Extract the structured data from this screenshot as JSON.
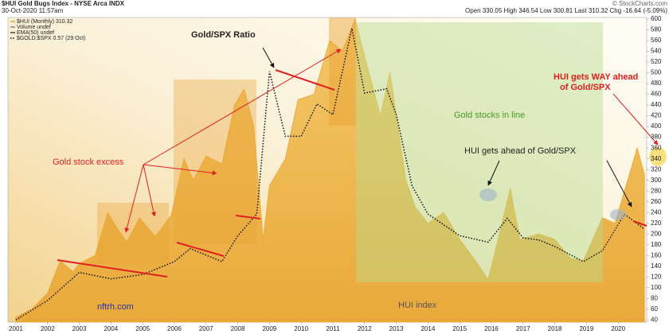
{
  "header": {
    "symbol": "$HUI Gold Bugs Index - NYSE Arca INDX",
    "date": "30-Oct-2020 11:57am",
    "source": "© StockCharts.com",
    "stats": "Open 330.05  High 346.54  Low 300.81  Last 310.32  Chg -16.64 (-5.09%)"
  },
  "chart_data": {
    "type": "area",
    "legend_extra": [
      "Volume undef",
      "EMA(50) undef"
    ],
    "annotations": [
      "Gold/SPX Ratio",
      "Gold stock excess",
      "Gold stocks in line",
      "HUI gets ahead of Gold/SPX",
      "HUI gets WAY ahead",
      "of Gold/SPX",
      "nftrh.com",
      "HUI index"
    ],
    "xlim": [
      2000.75,
      2020.9
    ],
    "xticks": [
      2001,
      2002,
      2003,
      2004,
      2005,
      2006,
      2007,
      2008,
      2009,
      2010,
      2011,
      2012,
      2013,
      2014,
      2015,
      2016,
      2017,
      2018,
      2019,
      2020
    ],
    "ylim": [
      36,
      603
    ],
    "yticks": [
      40,
      60,
      80,
      100,
      120,
      140,
      160,
      180,
      200,
      220,
      240,
      260,
      280,
      300,
      320,
      340,
      360,
      380,
      400,
      420,
      440,
      460,
      480,
      500,
      520,
      540,
      560,
      580,
      600
    ],
    "y2lim": [
      0.14,
      1.55
    ],
    "series": [
      {
        "name": "$HUI (Monthly) 310.32",
        "color": "#eaa52a",
        "x": [
          2001.0,
          2001.5,
          2002.0,
          2002.4,
          2002.8,
          2003.0,
          2003.5,
          2003.9,
          2004.2,
          2004.5,
          2004.9,
          2005.4,
          2005.9,
          2006.3,
          2006.6,
          2007.0,
          2007.5,
          2007.9,
          2008.2,
          2008.5,
          2008.8,
          2009.0,
          2009.5,
          2009.9,
          2010.4,
          2010.9,
          2011.3,
          2011.7,
          2012.0,
          2012.5,
          2012.8,
          2013.3,
          2013.6,
          2014.0,
          2014.5,
          2015.0,
          2015.5,
          2015.9,
          2016.6,
          2016.9,
          2017.5,
          2018.0,
          2018.5,
          2018.9,
          2019.5,
          2019.9,
          2020.6,
          2020.83
        ],
        "values": [
          45,
          60,
          90,
          150,
          130,
          145,
          160,
          240,
          210,
          185,
          230,
          195,
          235,
          340,
          300,
          345,
          330,
          440,
          470,
          400,
          190,
          290,
          340,
          450,
          460,
          560,
          540,
          600,
          530,
          420,
          500,
          300,
          250,
          220,
          240,
          190,
          150,
          115,
          285,
          190,
          200,
          190,
          155,
          150,
          230,
          220,
          360,
          310.32
        ]
      },
      {
        "name": "$GOLD:$SPX 0.57 (29 Oct)",
        "color": "#111111",
        "type": "line",
        "axis": "y2",
        "style": "dotted",
        "x": [
          2001.0,
          2002.0,
          2003.0,
          2004.0,
          2005.0,
          2006.0,
          2006.5,
          2007.5,
          2008.0,
          2008.6,
          2009.0,
          2009.5,
          2010.0,
          2010.5,
          2011.0,
          2011.6,
          2012.0,
          2012.7,
          2013.0,
          2013.5,
          2014.0,
          2014.5,
          2015.0,
          2015.9,
          2016.5,
          2017.0,
          2017.5,
          2018.0,
          2018.9,
          2019.5,
          2020.2,
          2020.83
        ],
        "values": [
          0.15,
          0.24,
          0.37,
          0.34,
          0.36,
          0.42,
          0.48,
          0.42,
          0.54,
          0.64,
          1.3,
          1.0,
          1.0,
          1.15,
          1.1,
          1.5,
          1.2,
          1.22,
          1.1,
          0.77,
          0.64,
          0.59,
          0.54,
          0.51,
          0.62,
          0.53,
          0.52,
          0.49,
          0.42,
          0.47,
          0.64,
          0.57
        ]
      }
    ]
  }
}
